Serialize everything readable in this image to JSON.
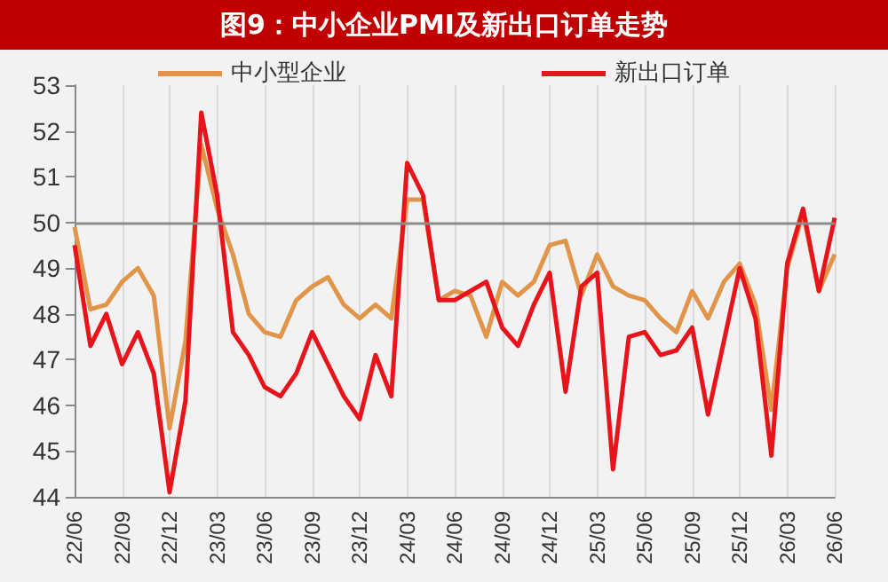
{
  "chart_data": {
    "type": "line",
    "title": "图9：中小企业PMI及新出口订单走势",
    "categories": [
      "22/06",
      null,
      null,
      "22/09",
      null,
      null,
      "22/12",
      null,
      null,
      "23/03",
      null,
      null,
      "23/06",
      null,
      null,
      "23/09",
      null,
      null,
      "23/12",
      null,
      null,
      "24/03",
      null,
      null,
      "24/06",
      null,
      null,
      "24/09",
      null,
      null,
      "24/12",
      null,
      null,
      "25/03",
      null,
      null,
      "25/06",
      null,
      null,
      "25/09",
      null,
      null,
      "25/12",
      null,
      null,
      "26/03",
      null,
      null,
      "26/06"
    ],
    "series": [
      {
        "name": "中小型企业",
        "color": "#e0954a",
        "values": [
          49.9,
          48.1,
          48.2,
          48.7,
          49.0,
          48.4,
          45.5,
          47.4,
          51.7,
          50.3,
          49.3,
          48.0,
          47.6,
          47.5,
          48.3,
          48.6,
          48.8,
          48.2,
          47.9,
          48.2,
          47.9,
          50.5,
          50.5,
          48.3,
          48.5,
          48.4,
          47.5,
          48.7,
          48.4,
          48.7,
          49.5,
          49.6,
          48.4,
          49.3,
          48.6,
          48.4,
          48.3,
          47.9,
          47.6,
          48.5,
          47.9,
          48.7,
          49.1,
          48.2,
          45.9,
          49.0,
          50.2,
          48.5,
          49.3
        ]
      },
      {
        "name": "新出口订单",
        "color": "#e8141b",
        "values": [
          49.5,
          47.3,
          48.0,
          46.9,
          47.6,
          46.7,
          44.1,
          46.1,
          52.4,
          50.6,
          47.6,
          47.1,
          46.4,
          46.2,
          46.7,
          47.6,
          46.9,
          46.2,
          45.7,
          47.1,
          46.2,
          51.3,
          50.6,
          48.3,
          48.3,
          48.5,
          48.7,
          47.7,
          47.3,
          48.2,
          48.9,
          46.3,
          48.6,
          48.9,
          44.6,
          47.5,
          47.6,
          47.1,
          47.2,
          47.7,
          45.8,
          47.4,
          49.0,
          47.9,
          44.9,
          49.1,
          50.3,
          48.5,
          50.1
        ]
      }
    ],
    "ylim": [
      44,
      53
    ],
    "yticks": [
      44,
      45,
      46,
      47,
      48,
      49,
      50,
      51,
      52,
      53
    ],
    "ref_lines": [
      {
        "axis": "y",
        "value": 50,
        "color": "#8c8c8c"
      }
    ],
    "grid": "x",
    "legend": "top",
    "line_style": "solid",
    "marker": "none"
  }
}
